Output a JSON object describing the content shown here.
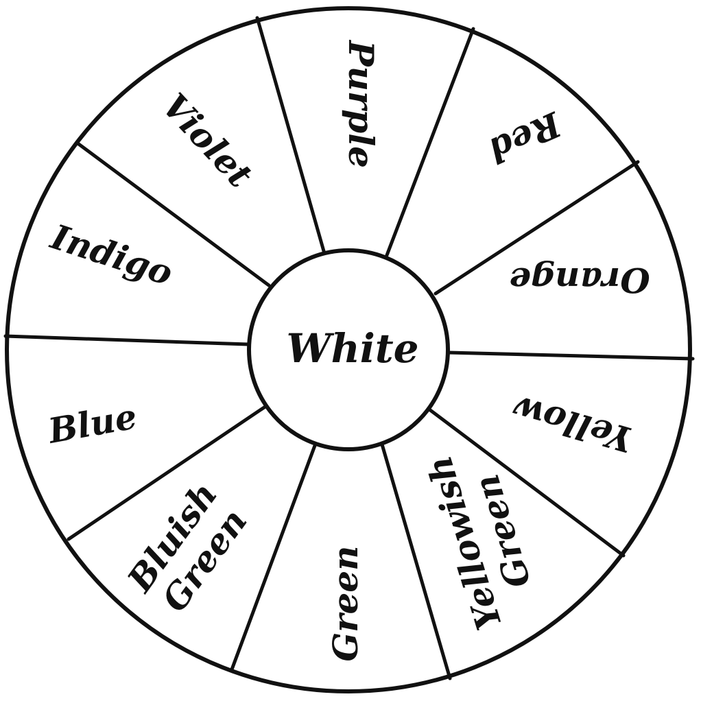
{
  "center": {
    "label": "White"
  },
  "segments": [
    {
      "id": "purple",
      "lines": [
        "Purple"
      ]
    },
    {
      "id": "red",
      "lines": [
        "Red"
      ]
    },
    {
      "id": "orange",
      "lines": [
        "Orange"
      ]
    },
    {
      "id": "yellow",
      "lines": [
        "Yellow"
      ]
    },
    {
      "id": "yellowish-green",
      "lines": [
        "Yellowish",
        "Green"
      ]
    },
    {
      "id": "green",
      "lines": [
        "Green"
      ]
    },
    {
      "id": "bluish-green",
      "lines": [
        "Bluish",
        "Green"
      ]
    },
    {
      "id": "blue",
      "lines": [
        "Blue"
      ]
    },
    {
      "id": "indigo",
      "lines": [
        "Indigo"
      ]
    },
    {
      "id": "violet",
      "lines": [
        "Violet"
      ]
    }
  ],
  "colors": {
    "stroke": "#111111",
    "background": "#ffffff"
  }
}
